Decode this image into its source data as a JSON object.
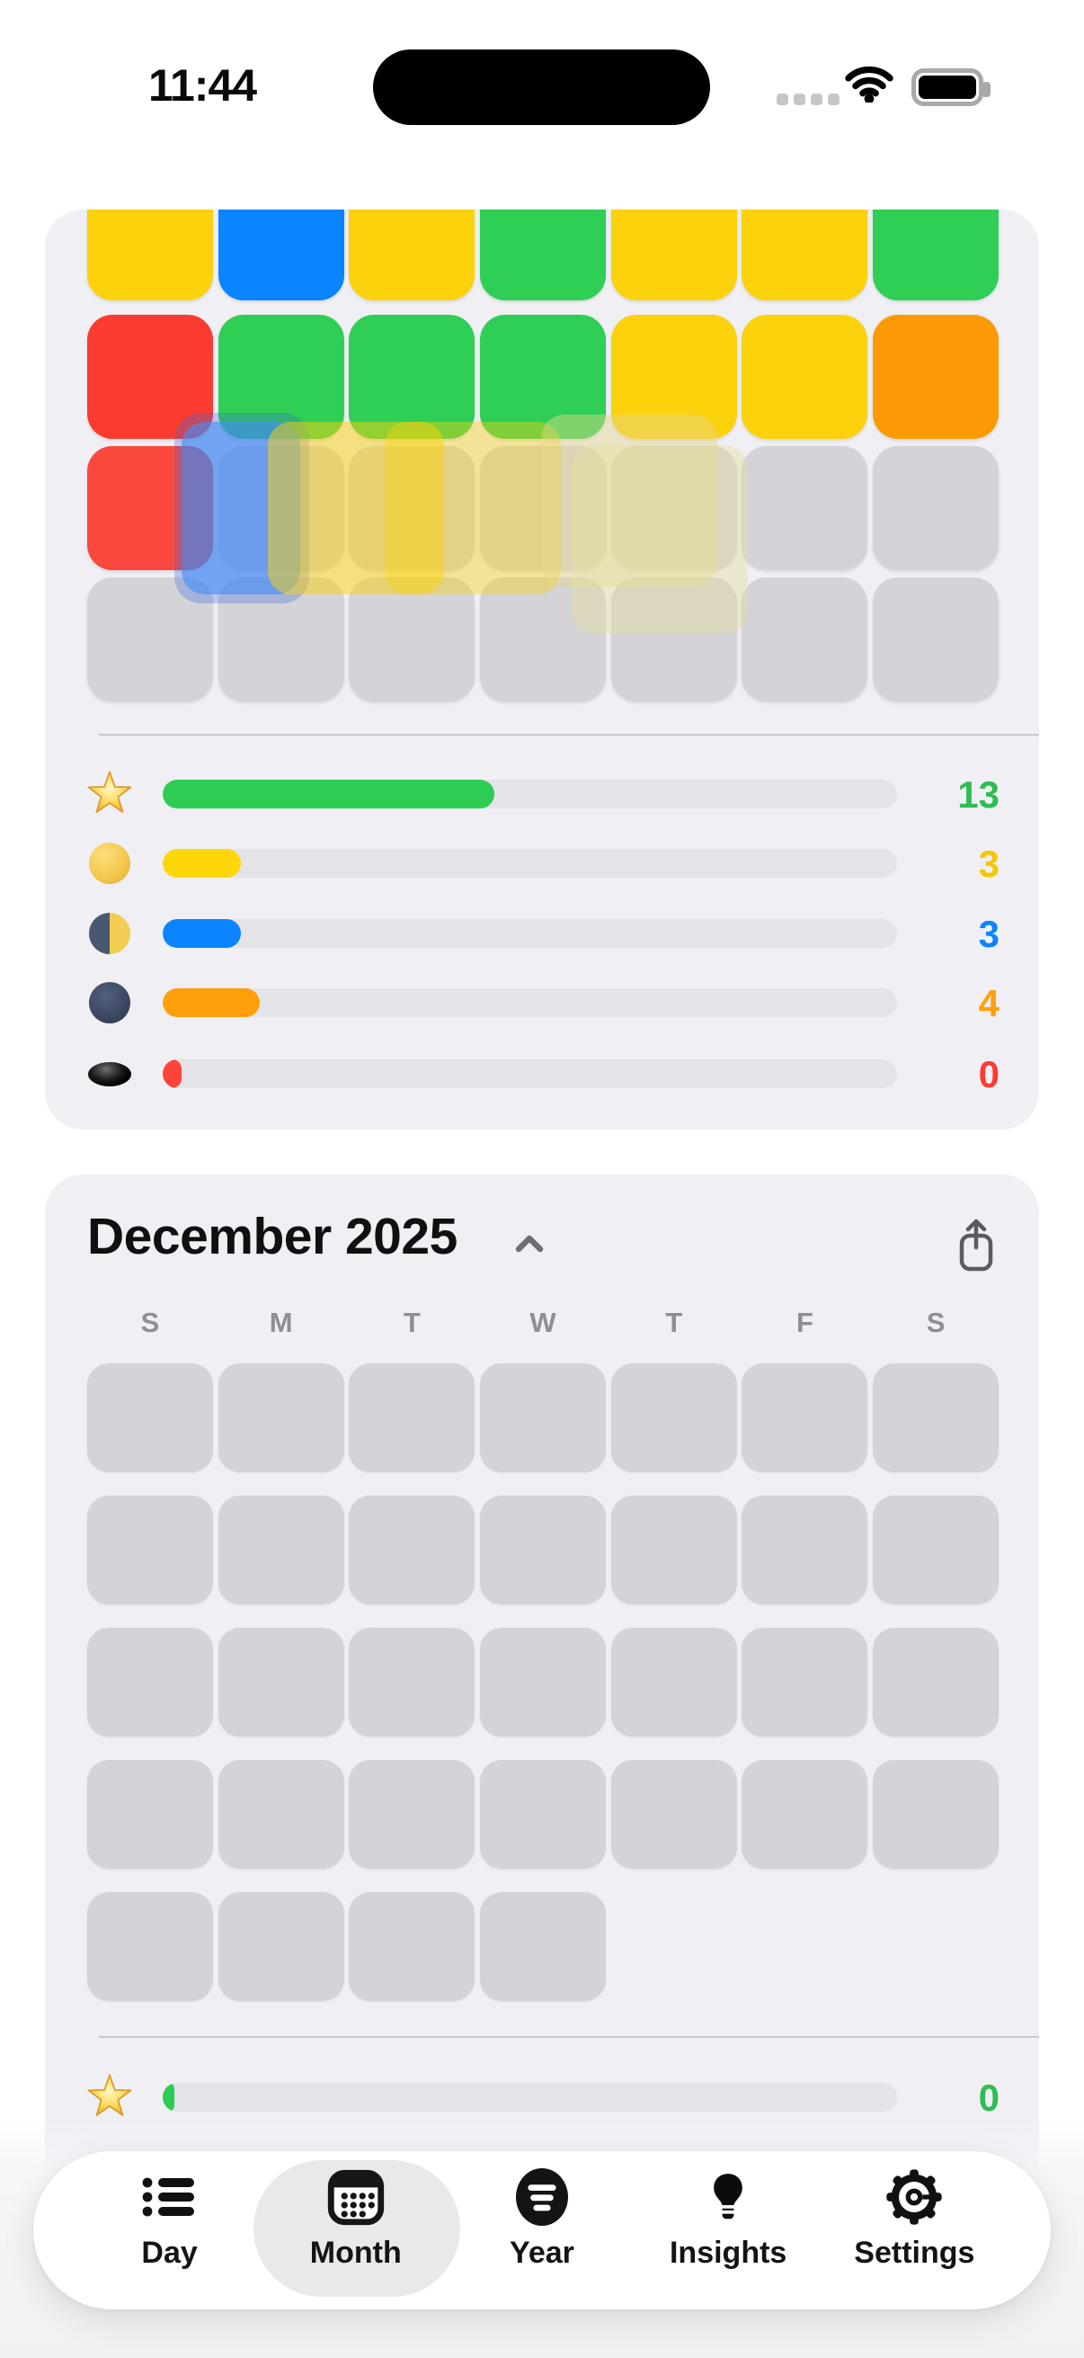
{
  "status_bar": {
    "time": "11:44"
  },
  "colors": {
    "yellow": "#FBD20B",
    "blue": "#0A84FF",
    "green": "#2FCE55",
    "red": "#FB3B30",
    "red_light": "#F9493E",
    "orange": "#FB9A05",
    "gray": "#D3D3D8"
  },
  "chart_data": {
    "type": "heatmap",
    "title": "Monthly rating calendar (top, partially scrolled) with rating counts",
    "top_month_grid_rows": [
      [
        "yellow",
        "blue",
        "yellow",
        "green",
        "yellow",
        "yellow",
        "green"
      ],
      [
        "red",
        "green",
        "green",
        "green",
        "yellow",
        "yellow",
        "orange"
      ],
      [
        "red_light",
        "gray",
        "gray",
        "gray",
        "gray",
        "gray",
        "gray"
      ],
      [
        "gray",
        "gray",
        "gray",
        "gray",
        "gray",
        "gray",
        "gray"
      ]
    ],
    "top_month_counts": [
      {
        "rating": "star",
        "count": 13
      },
      {
        "rating": "full-moon",
        "count": 3
      },
      {
        "rating": "last-quarter-moon",
        "count": 3
      },
      {
        "rating": "new-moon",
        "count": 4
      },
      {
        "rating": "hole",
        "count": 0
      }
    ],
    "bottom_month": "December 2025",
    "bottom_month_counts": [
      {
        "rating": "star",
        "count": 0
      }
    ]
  },
  "top_card": {
    "rows": [
      [
        "yellow",
        "blue",
        "yellow",
        "green",
        "yellow",
        "yellow",
        "green"
      ],
      [
        "red",
        "green",
        "green",
        "green",
        "yellow",
        "yellow",
        "orange"
      ],
      [
        "red_light",
        "gray",
        "gray",
        "gray",
        "gray",
        "gray",
        "gray"
      ],
      [
        "gray",
        "gray",
        "gray",
        "gray",
        "gray",
        "gray",
        "gray"
      ]
    ],
    "legend": [
      {
        "icon": "star",
        "count": "13",
        "count_color": "#2EBD52",
        "bar_color": "#2ECC54",
        "fill_pct": 45.2
      },
      {
        "icon": "full-moon",
        "count": "3",
        "count_color": "#F7C600",
        "bar_color": "#FFD60A",
        "fill_pct": 10.7
      },
      {
        "icon": "last-quarter-moon",
        "count": "3",
        "count_color": "#0A84FF",
        "bar_color": "#0A84FF",
        "fill_pct": 10.7
      },
      {
        "icon": "new-moon",
        "count": "4",
        "count_color": "#FF9F0A",
        "bar_color": "#FF9F0A",
        "fill_pct": 13.2
      },
      {
        "icon": "hole",
        "count": "0",
        "count_color": "#FF3B30",
        "bar_color": "#FF453A",
        "fill_pct": 2.6
      }
    ]
  },
  "bottom_card": {
    "title": "December 2025",
    "weekdays": [
      "S",
      "M",
      "T",
      "W",
      "T",
      "F",
      "S"
    ],
    "rows": [
      7,
      7,
      7,
      7,
      4
    ],
    "legend": [
      {
        "icon": "star",
        "count": "0",
        "count_color": "#2EBD52",
        "bar_color": "#2ECC54",
        "fill_pct": 1.6
      }
    ]
  },
  "tab_bar": {
    "selected": "Month",
    "items": [
      {
        "label": "Day",
        "icon": "list"
      },
      {
        "label": "Month",
        "icon": "calendar"
      },
      {
        "label": "Year",
        "icon": "filter-circle"
      },
      {
        "label": "Insights",
        "icon": "lightbulb"
      },
      {
        "label": "Settings",
        "icon": "gear"
      }
    ]
  }
}
